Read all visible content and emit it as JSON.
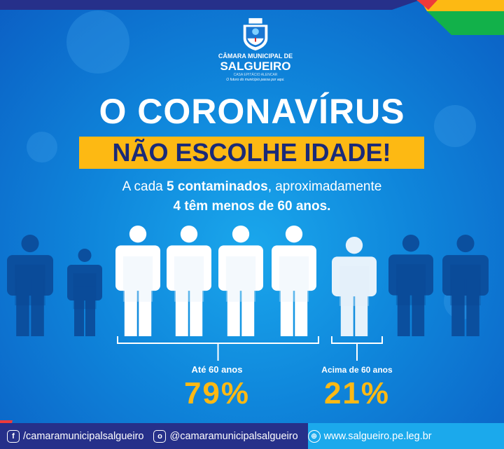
{
  "colors": {
    "background": "#0f86db",
    "accent_yellow": "#fdb913",
    "navy": "#1a2a78",
    "figure_dark": "#0b4f9e",
    "figure_light": "#ffffff"
  },
  "logo": {
    "line1": "CÂMARA MUNICIPAL DE",
    "line2": "SALGUEIRO",
    "line3": "CASA EPITÁCIO ALENCAR",
    "line4": "O futuro do município passa por aqui."
  },
  "headline": {
    "title": "O CORONAVÍRUS",
    "banner": "NÃO ESCOLHE IDADE!"
  },
  "subtitle": {
    "line1_pre": "A cada ",
    "line1_bold": "5 contaminados",
    "line1_post": ", aproximadamente",
    "line2": "4 têm menos de 60 anos."
  },
  "stats": [
    {
      "label": "Até 60 anos",
      "value": "79%"
    },
    {
      "label": "Acima de 60 anos",
      "value": "21%"
    }
  ],
  "footer": [
    {
      "icon": "facebook-icon",
      "text": "/camaramunicipalsalgueiro"
    },
    {
      "icon": "instagram-icon",
      "text": "@camaramunicipalsalgueiro"
    },
    {
      "icon": "globe-icon",
      "text": "www.salgueiro.pe.leg.br"
    }
  ]
}
